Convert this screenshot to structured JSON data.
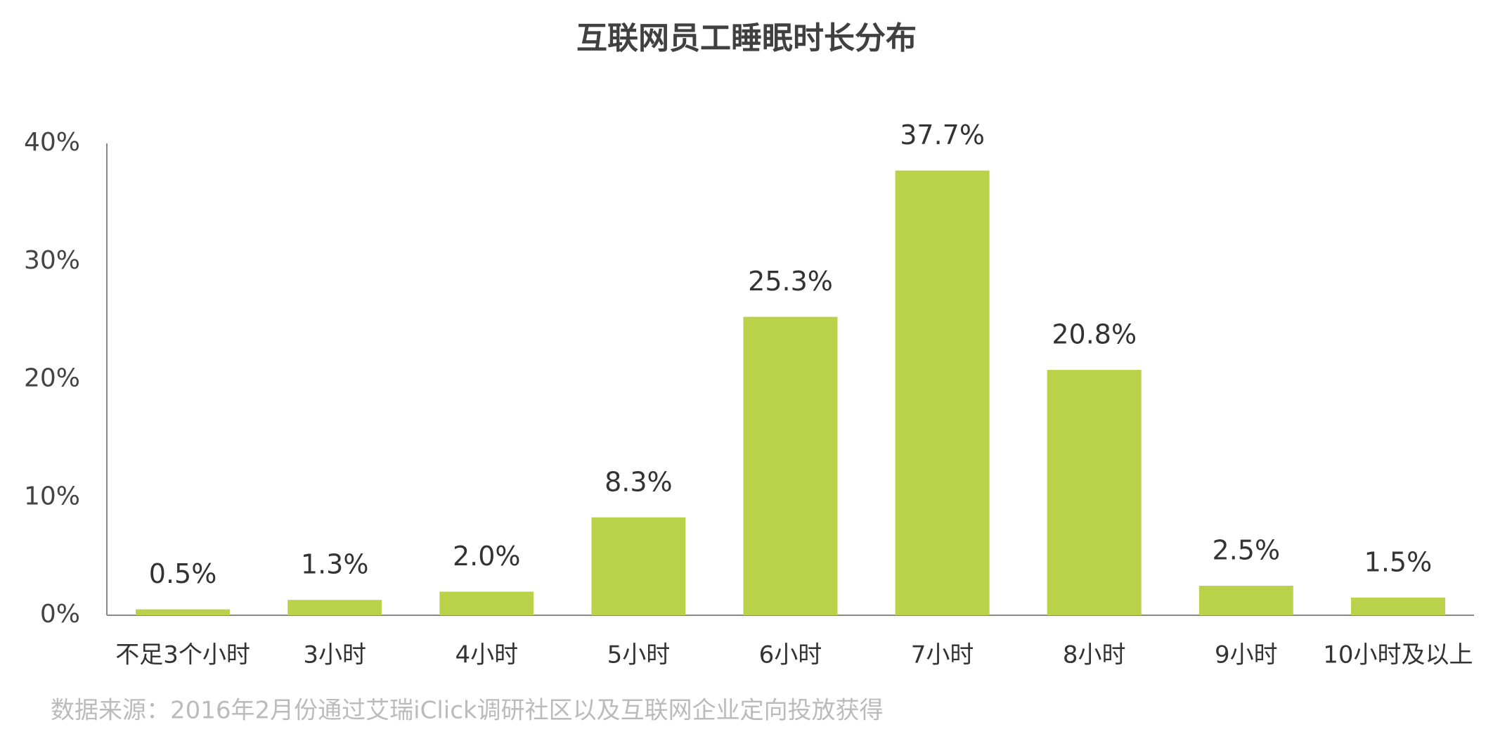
{
  "chart_data": {
    "type": "bar",
    "title": "互联网员工睡眠时长分布",
    "categories": [
      "不足3个小时",
      "3小时",
      "4小时",
      "5小时",
      "6小时",
      "7小时",
      "8小时",
      "9小时",
      "10小时及以上"
    ],
    "values": [
      0.5,
      1.3,
      2.0,
      8.3,
      25.3,
      37.7,
      20.8,
      2.5,
      1.5
    ],
    "value_labels": [
      "0.5%",
      "1.3%",
      "2.0%",
      "8.3%",
      "25.3%",
      "37.7%",
      "20.8%",
      "2.5%",
      "1.5%"
    ],
    "color": "#b9d24a",
    "ylim": [
      0,
      40
    ],
    "yticks": [
      {
        "value": 0,
        "label": "0%"
      },
      {
        "value": 10,
        "label": "10%"
      },
      {
        "value": 20,
        "label": "20%"
      },
      {
        "value": 30,
        "label": "30%"
      },
      {
        "value": 40,
        "label": "40%"
      }
    ],
    "grid": false,
    "source": "数据来源：2016年2月份通过艾瑞iClick调研社区以及互联网企业定向投放获得"
  }
}
